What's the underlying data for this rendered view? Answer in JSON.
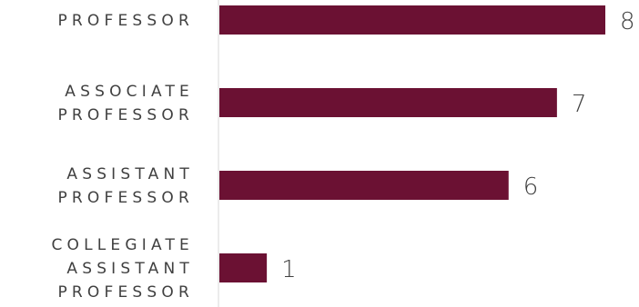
{
  "chart_data": {
    "type": "bar",
    "orientation": "horizontal",
    "categories": [
      [
        "PROFESSOR"
      ],
      [
        "ASSOCIATE",
        "PROFESSOR"
      ],
      [
        "ASSISTANT",
        "PROFESSOR"
      ],
      [
        "COLLEGIATE",
        "ASSISTANT",
        "PROFESSOR"
      ]
    ],
    "values": [
      8,
      7,
      6,
      1
    ],
    "title": "",
    "xlabel": "",
    "ylabel": "",
    "xlim": [
      0,
      8
    ],
    "grid": false,
    "legend": "none",
    "bar_color": "#6b1133",
    "axis_color": "#d9d9d9",
    "label_color": "#404040",
    "data_labels": true
  }
}
